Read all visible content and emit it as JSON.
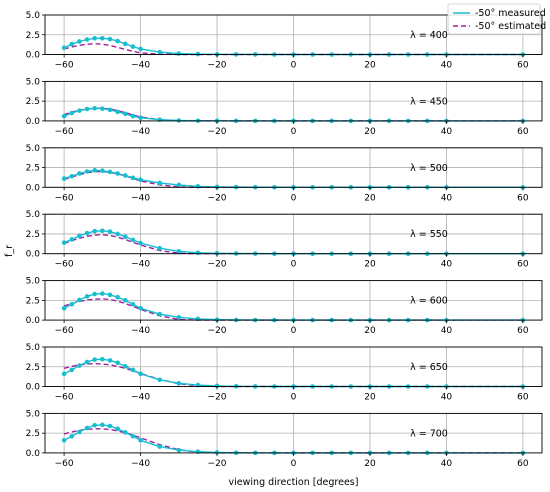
{
  "chart_data": {
    "type": "line",
    "xlabel": "viewing direction [degrees]",
    "ylabel": "f_r",
    "xlim": [
      -65,
      65
    ],
    "ylim": [
      0,
      5
    ],
    "xticks": [
      -60,
      -40,
      -20,
      0,
      20,
      40,
      60
    ],
    "yticks": [
      0.0,
      2.5,
      5.0
    ],
    "ytick_labels": [
      "0.0",
      "2.5",
      "5.0"
    ],
    "grid": true,
    "legend": {
      "placement": "top-right",
      "entries": [
        "-50° measured",
        "-50° estimated"
      ]
    },
    "colors": {
      "measured": "#17becf",
      "estimated": "#a020a0"
    },
    "x": [
      -60,
      -58,
      -56,
      -54,
      -52,
      -50,
      -48,
      -46,
      -44,
      -42,
      -40,
      -35,
      -30,
      -25,
      -20,
      -15,
      -10,
      -5,
      0,
      5,
      10,
      15,
      20,
      25,
      30,
      35,
      40,
      60
    ],
    "panels": [
      {
        "annotation": "λ = 400",
        "measured": [
          0.85,
          1.3,
          1.65,
          1.9,
          2.05,
          2.05,
          1.95,
          1.7,
          1.35,
          1.0,
          0.7,
          0.3,
          0.12,
          0.05,
          0.02,
          0.01,
          0.01,
          0,
          0,
          0,
          0,
          0,
          0,
          0,
          0,
          0,
          0,
          0
        ],
        "estimated": [
          0.7,
          0.95,
          1.15,
          1.3,
          1.35,
          1.3,
          1.15,
          0.9,
          0.65,
          0.4,
          0.2,
          0.05,
          0,
          0,
          0,
          0,
          0,
          0,
          0,
          0,
          0,
          0,
          0,
          0,
          0,
          0,
          0,
          0
        ]
      },
      {
        "annotation": "λ = 450",
        "measured": [
          0.6,
          1.0,
          1.3,
          1.5,
          1.6,
          1.55,
          1.4,
          1.15,
          0.9,
          0.6,
          0.4,
          0.15,
          0.05,
          0.02,
          0.01,
          0,
          0,
          0,
          0,
          0,
          0,
          0,
          0,
          0,
          0,
          0,
          0,
          0
        ],
        "estimated": [
          0.8,
          1.1,
          1.35,
          1.5,
          1.6,
          1.6,
          1.5,
          1.3,
          1.05,
          0.75,
          0.5,
          0.15,
          0,
          0,
          0,
          0,
          0,
          0,
          0,
          0,
          0,
          0,
          0,
          0,
          0,
          0,
          0,
          0
        ]
      },
      {
        "annotation": "λ = 500",
        "measured": [
          1.1,
          1.4,
          1.75,
          2.0,
          2.15,
          2.1,
          1.95,
          1.75,
          1.5,
          1.2,
          0.95,
          0.55,
          0.3,
          0.12,
          0.05,
          0.02,
          0.01,
          0,
          0,
          0,
          0,
          0,
          0,
          0,
          0,
          0,
          0,
          0
        ],
        "estimated": [
          1.0,
          1.3,
          1.6,
          1.85,
          2.0,
          2.0,
          1.9,
          1.7,
          1.45,
          1.15,
          0.8,
          0.3,
          0.05,
          0,
          0,
          0,
          0,
          0,
          0,
          0,
          0,
          0,
          0,
          0,
          0,
          0,
          0,
          0
        ]
      },
      {
        "annotation": "λ = 550",
        "measured": [
          1.4,
          1.8,
          2.25,
          2.6,
          2.85,
          2.9,
          2.8,
          2.5,
          2.15,
          1.75,
          1.35,
          0.7,
          0.3,
          0.12,
          0.05,
          0.02,
          0.01,
          0,
          0,
          0,
          0,
          0,
          0,
          0,
          0,
          0,
          0,
          0
        ],
        "estimated": [
          1.3,
          1.65,
          1.95,
          2.2,
          2.35,
          2.4,
          2.3,
          2.1,
          1.8,
          1.45,
          1.1,
          0.4,
          0.05,
          0,
          0,
          0,
          0,
          0,
          0,
          0,
          0,
          0,
          0,
          0,
          0,
          0,
          0,
          0
        ]
      },
      {
        "annotation": "λ = 600",
        "measured": [
          1.5,
          2.0,
          2.55,
          3.0,
          3.3,
          3.35,
          3.2,
          2.9,
          2.5,
          2.0,
          1.5,
          0.75,
          0.35,
          0.15,
          0.06,
          0.02,
          0.01,
          0,
          0,
          0,
          0,
          0,
          0,
          0,
          0,
          0,
          0,
          0
        ],
        "estimated": [
          1.8,
          2.1,
          2.35,
          2.55,
          2.65,
          2.7,
          2.6,
          2.4,
          2.1,
          1.75,
          1.35,
          0.55,
          0.08,
          0,
          0,
          0,
          0,
          0,
          0,
          0,
          0,
          0,
          0,
          0,
          0,
          0,
          0,
          0
        ]
      },
      {
        "annotation": "λ = 650",
        "measured": [
          1.6,
          2.1,
          2.65,
          3.1,
          3.4,
          3.45,
          3.3,
          3.0,
          2.55,
          2.1,
          1.6,
          0.85,
          0.4,
          0.18,
          0.08,
          0.03,
          0.01,
          0,
          0,
          0,
          0,
          0,
          0,
          0,
          0,
          0,
          0,
          0
        ],
        "estimated": [
          2.3,
          2.55,
          2.75,
          2.85,
          2.9,
          2.85,
          2.75,
          2.55,
          2.3,
          2.0,
          1.65,
          0.9,
          0.35,
          0.08,
          0,
          0,
          0,
          0,
          0,
          0,
          0,
          0,
          0,
          0,
          0,
          0,
          0,
          0
        ]
      },
      {
        "annotation": "λ = 700",
        "measured": [
          1.6,
          2.1,
          2.65,
          3.15,
          3.5,
          3.55,
          3.4,
          3.05,
          2.6,
          2.1,
          1.6,
          0.8,
          0.35,
          0.15,
          0.06,
          0.02,
          0.01,
          0,
          0,
          0,
          0,
          0,
          0,
          0,
          0,
          0,
          0,
          0
        ],
        "estimated": [
          2.4,
          2.65,
          2.85,
          3.0,
          3.05,
          3.05,
          2.95,
          2.8,
          2.55,
          2.25,
          1.9,
          1.05,
          0.4,
          0.08,
          0,
          0,
          0,
          0,
          0,
          0,
          0,
          0,
          0,
          0,
          0,
          0,
          0,
          0
        ]
      }
    ]
  }
}
